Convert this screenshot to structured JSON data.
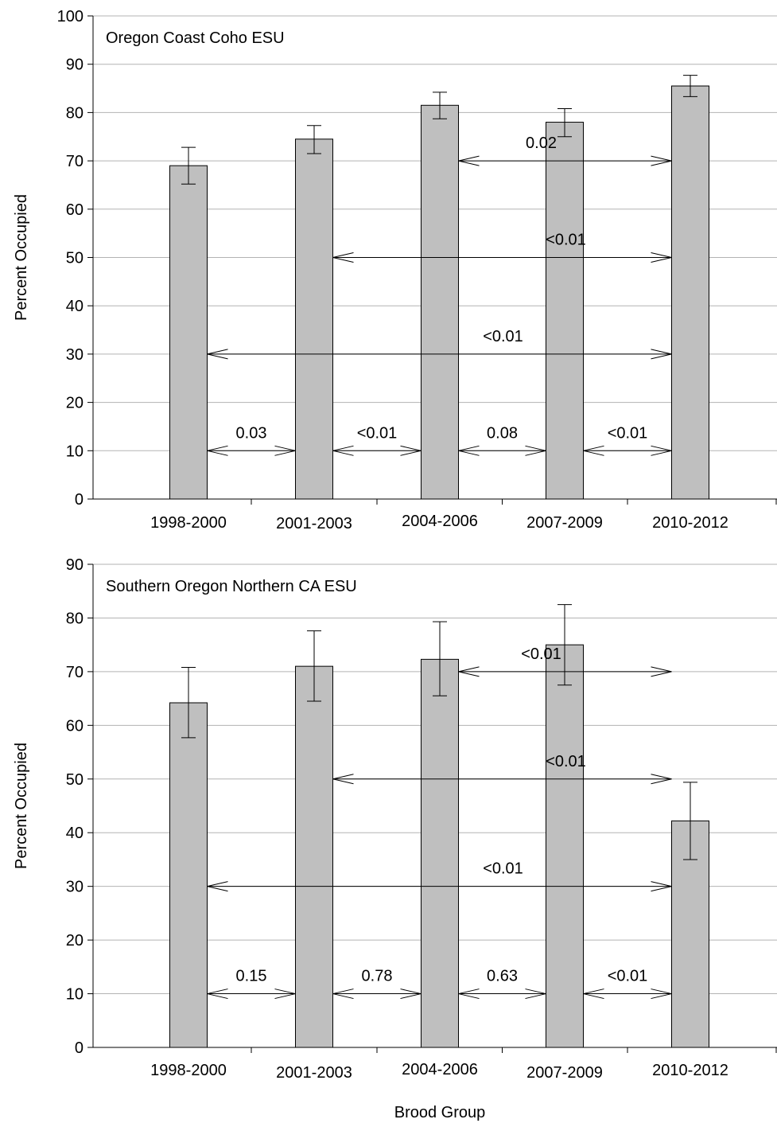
{
  "figure": {
    "xlabel": "Brood Group"
  },
  "chart_data": [
    {
      "type": "bar",
      "title": "Oregon Coast Coho ESU",
      "ylabel": "Percent Occupied",
      "ylim": [
        0,
        100
      ],
      "yticks": [
        0,
        10,
        20,
        30,
        40,
        50,
        60,
        70,
        80,
        90,
        100
      ],
      "grid": true,
      "categories": [
        "1998-2000",
        "2001-2003",
        "2004-2006",
        "2007-2009",
        "2010-2012"
      ],
      "values": [
        69,
        74.5,
        81.5,
        78,
        85.5
      ],
      "error_low": [
        65.2,
        71.5,
        78.7,
        75,
        83.3
      ],
      "error_high": [
        72.8,
        77.3,
        84.2,
        80.8,
        87.7
      ],
      "bar_color": "#bfbfbf",
      "comparisons": [
        {
          "from": 0,
          "to": 1,
          "y": 10,
          "label": "0.03"
        },
        {
          "from": 1,
          "to": 2,
          "y": 10,
          "label": "<0.01"
        },
        {
          "from": 2,
          "to": 3,
          "y": 10,
          "label": "0.08"
        },
        {
          "from": 3,
          "to": 4,
          "y": 10,
          "label": "<0.01"
        },
        {
          "from": 0,
          "to": 4,
          "y": 30,
          "label": "<0.01"
        },
        {
          "from": 1,
          "to": 4,
          "y": 50,
          "label": "<0.01"
        },
        {
          "from": 2,
          "to": 4,
          "y": 70,
          "label": "0.02"
        }
      ]
    },
    {
      "type": "bar",
      "title": "Southern Oregon Northern CA ESU",
      "ylabel": "Percent Occupied",
      "ylim": [
        0,
        90
      ],
      "yticks": [
        0,
        10,
        20,
        30,
        40,
        50,
        60,
        70,
        80,
        90
      ],
      "grid": true,
      "categories": [
        "1998-2000",
        "2001-2003",
        "2004-2006",
        "2007-2009",
        "2010-2012"
      ],
      "values": [
        64.2,
        71,
        72.3,
        75,
        42.2
      ],
      "error_low": [
        57.7,
        64.5,
        65.5,
        67.5,
        35
      ],
      "error_high": [
        70.8,
        77.6,
        79.3,
        82.5,
        49.4
      ],
      "bar_color": "#bfbfbf",
      "comparisons": [
        {
          "from": 0,
          "to": 1,
          "y": 10,
          "label": "0.15"
        },
        {
          "from": 1,
          "to": 2,
          "y": 10,
          "label": "0.78"
        },
        {
          "from": 2,
          "to": 3,
          "y": 10,
          "label": "0.63"
        },
        {
          "from": 3,
          "to": 4,
          "y": 10,
          "label": "<0.01"
        },
        {
          "from": 0,
          "to": 4,
          "y": 30,
          "label": "<0.01"
        },
        {
          "from": 1,
          "to": 4,
          "y": 50,
          "label": "<0.01"
        },
        {
          "from": 2,
          "to": 4,
          "y": 70,
          "label": "<0.01"
        }
      ]
    }
  ]
}
